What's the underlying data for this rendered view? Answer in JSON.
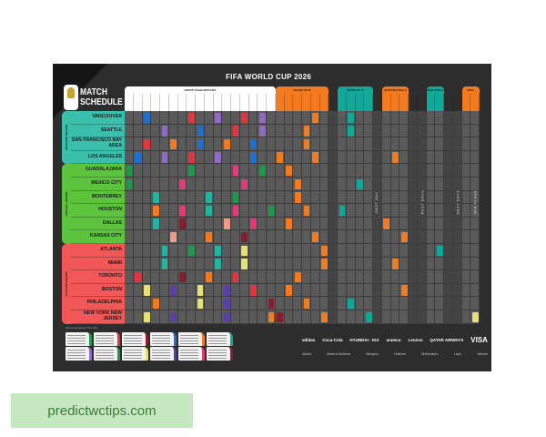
{
  "title": "FIFA WORLD CUP 2026",
  "logo": {
    "line1": "MATCH",
    "line2": "SCHEDULE",
    "badge": "FIFA 26"
  },
  "regions": [
    {
      "name": "WESTERN REGION",
      "color": "#3bbfad",
      "rows": 4
    },
    {
      "name": "CENTRAL REGION",
      "color": "#5cc43c",
      "rows": 6
    },
    {
      "name": "EASTERN REGION",
      "color": "#f25757",
      "rows": 6
    }
  ],
  "cities": [
    "VANCOUVER",
    "SEATTLE",
    "SAN FRANCISCO BAY AREA",
    "LOS ANGELES",
    "GUADALAJARA",
    "MEXICO CITY",
    "MONTERREY",
    "HOUSTON",
    "DALLAS",
    "KANSAS CITY",
    "ATLANTA",
    "MIAMI",
    "TORONTO",
    "BOSTON",
    "PHILADELPHIA",
    "NEW YORK NEW JERSEY"
  ],
  "day_count": 40,
  "phases": [
    {
      "name": "GROUP STAGE MATCHES",
      "from": 0,
      "to": 16,
      "color": "#ffffff"
    },
    {
      "name": "ROUND OF 32",
      "from": 17,
      "to": 22,
      "color": "#f47a20"
    },
    {
      "name": "ROUND OF 16",
      "from": 24,
      "to": 27,
      "color": "#12a898"
    },
    {
      "name": "QUARTER-FINALS",
      "from": 29,
      "to": 31,
      "color": "#f47a20"
    },
    {
      "name": "SEMI-FINALS",
      "from": 34,
      "to": 35,
      "color": "#12a898"
    },
    {
      "name": "FINAL",
      "from": 38,
      "to": 39,
      "color": "#f47a20"
    }
  ],
  "rest_days": [
    {
      "col": 28,
      "label": "REST DAY"
    },
    {
      "col": 33,
      "label": "REST DAYS"
    },
    {
      "col": 37,
      "label": "REST DAYS"
    },
    {
      "col": 39,
      "label": "3RD PLACE"
    }
  ],
  "dark_cols": [
    23,
    28,
    32,
    33,
    36,
    37
  ],
  "colors": {
    "A": "#1d6fd1",
    "B": "#e8323c",
    "C": "#8e6bc4",
    "D": "#f47a20",
    "E": "#12a898",
    "F": "#1a9b4a",
    "G": "#e8387a",
    "H": "#8b1a2a",
    "I": "#e8e070",
    "J": "#f29a8a",
    "K": "#5b3fa8",
    "L": "#22b4a0"
  },
  "matches": [
    [
      0,
      2,
      "A"
    ],
    [
      0,
      7,
      "B"
    ],
    [
      0,
      10,
      "C"
    ],
    [
      0,
      13,
      "B"
    ],
    [
      0,
      15,
      "C"
    ],
    [
      0,
      21,
      "D"
    ],
    [
      0,
      25,
      "E"
    ],
    [
      1,
      4,
      "C"
    ],
    [
      1,
      8,
      "A"
    ],
    [
      1,
      12,
      "B"
    ],
    [
      1,
      15,
      "C"
    ],
    [
      1,
      20,
      "D"
    ],
    [
      1,
      25,
      "E"
    ],
    [
      2,
      2,
      "B"
    ],
    [
      2,
      5,
      "D"
    ],
    [
      2,
      8,
      "A"
    ],
    [
      2,
      11,
      "D"
    ],
    [
      2,
      14,
      "A"
    ],
    [
      2,
      20,
      "D"
    ],
    [
      3,
      1,
      "A"
    ],
    [
      3,
      4,
      "C"
    ],
    [
      3,
      7,
      "B"
    ],
    [
      3,
      10,
      "C"
    ],
    [
      3,
      14,
      "A"
    ],
    [
      3,
      17,
      "D"
    ],
    [
      3,
      21,
      "D"
    ],
    [
      3,
      30,
      "D"
    ],
    [
      4,
      0,
      "F"
    ],
    [
      4,
      7,
      "F"
    ],
    [
      4,
      12,
      "G"
    ],
    [
      4,
      15,
      "F"
    ],
    [
      4,
      18,
      "D"
    ],
    [
      5,
      0,
      "F"
    ],
    [
      5,
      6,
      "G"
    ],
    [
      5,
      13,
      "G"
    ],
    [
      5,
      19,
      "D"
    ],
    [
      5,
      26,
      "E"
    ],
    [
      6,
      3,
      "L"
    ],
    [
      6,
      9,
      "L"
    ],
    [
      6,
      12,
      "F"
    ],
    [
      6,
      19,
      "D"
    ],
    [
      7,
      3,
      "D"
    ],
    [
      7,
      6,
      "G"
    ],
    [
      7,
      9,
      "L"
    ],
    [
      7,
      12,
      "G"
    ],
    [
      7,
      16,
      "F"
    ],
    [
      7,
      20,
      "D"
    ],
    [
      7,
      24,
      "E"
    ],
    [
      8,
      3,
      "L"
    ],
    [
      8,
      6,
      "H"
    ],
    [
      8,
      11,
      "J"
    ],
    [
      8,
      14,
      "G"
    ],
    [
      8,
      18,
      "D"
    ],
    [
      8,
      29,
      "D"
    ],
    [
      9,
      5,
      "J"
    ],
    [
      9,
      9,
      "D"
    ],
    [
      9,
      13,
      "H"
    ],
    [
      9,
      21,
      "D"
    ],
    [
      9,
      31,
      "D"
    ],
    [
      10,
      4,
      "L"
    ],
    [
      10,
      7,
      "F"
    ],
    [
      10,
      10,
      "L"
    ],
    [
      10,
      13,
      "I"
    ],
    [
      10,
      22,
      "D"
    ],
    [
      10,
      35,
      "E"
    ],
    [
      11,
      4,
      "L"
    ],
    [
      11,
      10,
      "L"
    ],
    [
      11,
      13,
      "I"
    ],
    [
      11,
      22,
      "D"
    ],
    [
      11,
      30,
      "D"
    ],
    [
      12,
      1,
      "B"
    ],
    [
      12,
      6,
      "H"
    ],
    [
      12,
      9,
      "D"
    ],
    [
      12,
      12,
      "B"
    ],
    [
      12,
      19,
      "D"
    ],
    [
      13,
      2,
      "I"
    ],
    [
      13,
      5,
      "K"
    ],
    [
      13,
      8,
      "I"
    ],
    [
      13,
      11,
      "K"
    ],
    [
      13,
      14,
      "B"
    ],
    [
      13,
      18,
      "D"
    ],
    [
      13,
      31,
      "D"
    ],
    [
      14,
      3,
      "D"
    ],
    [
      14,
      8,
      "I"
    ],
    [
      14,
      11,
      "K"
    ],
    [
      14,
      16,
      "H"
    ],
    [
      14,
      20,
      "D"
    ],
    [
      14,
      25,
      "E"
    ],
    [
      15,
      2,
      "I"
    ],
    [
      15,
      5,
      "K"
    ],
    [
      15,
      11,
      "K"
    ],
    [
      15,
      16,
      "D"
    ],
    [
      15,
      17,
      "H"
    ],
    [
      15,
      22,
      "D"
    ],
    [
      15,
      27,
      "E"
    ],
    [
      15,
      39,
      "I"
    ]
  ],
  "footnote": "All times are Eastern Time (ET)",
  "group_colors": [
    "#1a9b4a",
    "#e8323c",
    "#8b1a2a",
    "#1d6fd1",
    "#f47a20",
    "#12a898",
    "#8e6bc4",
    "#1a9b4a",
    "#e8e070",
    "#5b3fa8",
    "#e8387a",
    "#8b1a2a"
  ],
  "sponsors": {
    "row1": [
      "adidas",
      "Coca-Cola",
      "HYUNDAI · KIA",
      "aramco",
      "Lenovo",
      "QATAR AIRWAYS",
      "VISA"
    ],
    "row2": [
      "Airbnb",
      "Bank of America",
      "Mengniu",
      "Unilever",
      "McDonald's",
      "Lay's",
      "Verizon"
    ]
  },
  "site": "predictwctips.com"
}
